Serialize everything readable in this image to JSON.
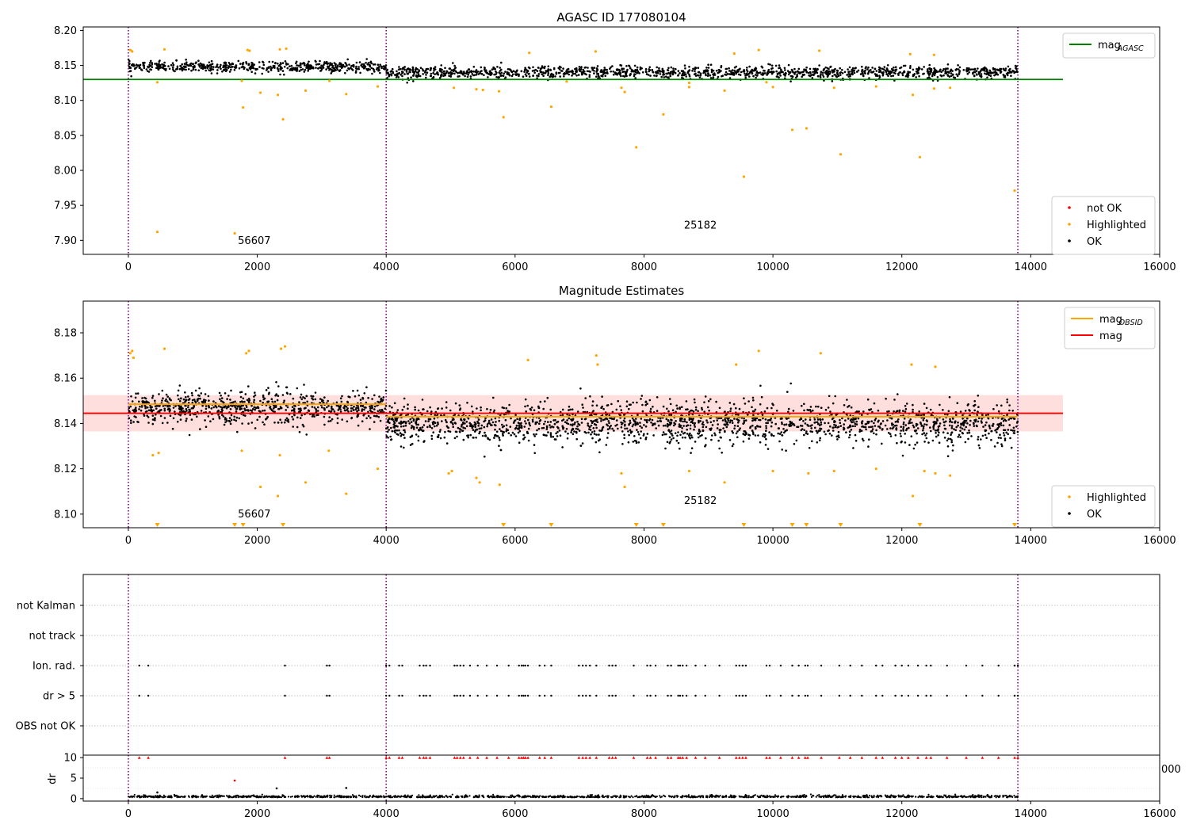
{
  "chart_data": [
    {
      "type": "scatter",
      "title": "AGASC ID 177080104",
      "xlim": [
        -700,
        16000
      ],
      "ylim": [
        7.88,
        8.205
      ],
      "x_ticks": [
        0,
        2000,
        4000,
        6000,
        8000,
        10000,
        12000,
        14000,
        16000
      ],
      "y_ticks": [
        7.9,
        7.95,
        8.0,
        8.05,
        8.1,
        8.15,
        8.2
      ],
      "vlines": [
        0,
        4000,
        13800
      ],
      "hline": {
        "name": "mag",
        "subscript": "AGASC",
        "value": 8.13,
        "x_range": [
          -700,
          14500
        ],
        "color": "#008000"
      },
      "annotations": [
        {
          "text": "56607",
          "x": 1700,
          "y": 7.895
        },
        {
          "text": "25182",
          "x": 8620,
          "y": 7.917
        }
      ],
      "legend_top": [
        {
          "label": "mag",
          "sub": "AGASC",
          "kind": "line",
          "color": "#008000"
        }
      ],
      "legend_bottom": [
        {
          "label": "not OK",
          "kind": "dot",
          "color": "#ff0000"
        },
        {
          "label": "Highlighted",
          "kind": "dot",
          "color": "#ffa500"
        },
        {
          "label": "OK",
          "kind": "dot",
          "color": "#000000"
        }
      ],
      "ok_series": {
        "segments": [
          {
            "x": [
              0,
              4000
            ],
            "center": 8.148,
            "spread": 0.007
          },
          {
            "x": [
              4000,
              13800
            ],
            "center": 8.14,
            "spread": 0.008
          }
        ],
        "point_count": 1900,
        "color": "#000000"
      },
      "highlighted_points": [
        [
          450,
          7.912
        ],
        [
          1650,
          7.91
        ],
        [
          1780,
          8.09
        ],
        [
          2050,
          8.111
        ],
        [
          2320,
          8.108
        ],
        [
          2400,
          8.073
        ],
        [
          2750,
          8.114
        ],
        [
          3380,
          8.109
        ],
        [
          3870,
          8.12
        ],
        [
          5820,
          8.076
        ],
        [
          6560,
          8.091
        ],
        [
          7880,
          8.033
        ],
        [
          8300,
          8.08
        ],
        [
          9550,
          7.991
        ],
        [
          10300,
          8.058
        ],
        [
          10520,
          8.06
        ],
        [
          11050,
          8.023
        ],
        [
          12280,
          8.019
        ],
        [
          13750,
          7.971
        ],
        [
          12170,
          8.108
        ],
        [
          5050,
          8.118
        ],
        [
          5400,
          8.116
        ],
        [
          5500,
          8.115
        ],
        [
          5750,
          8.113
        ],
        [
          7650,
          8.118
        ],
        [
          7700,
          8.112
        ],
        [
          8700,
          8.119
        ],
        [
          9250,
          8.114
        ],
        [
          10000,
          8.119
        ],
        [
          10950,
          8.118
        ],
        [
          11600,
          8.12
        ],
        [
          12500,
          8.117
        ],
        [
          12750,
          8.118
        ],
        [
          30,
          8.172
        ],
        [
          60,
          8.17
        ],
        [
          560,
          8.173
        ],
        [
          1850,
          8.172
        ],
        [
          1880,
          8.171
        ],
        [
          2350,
          8.173
        ],
        [
          2450,
          8.174
        ],
        [
          6220,
          8.168
        ],
        [
          7250,
          8.17
        ],
        [
          9400,
          8.167
        ],
        [
          9780,
          8.172
        ],
        [
          10720,
          8.171
        ],
        [
          12130,
          8.166
        ],
        [
          12500,
          8.165
        ],
        [
          3120,
          8.128
        ],
        [
          1760,
          8.128
        ],
        [
          450,
          8.126
        ],
        [
          6800,
          8.127
        ],
        [
          8700,
          8.125
        ],
        [
          9900,
          8.126
        ]
      ],
      "highlighted_color": "#ffa500"
    },
    {
      "type": "scatter",
      "title": "Magnitude Estimates",
      "xlim": [
        -700,
        16000
      ],
      "ylim": [
        8.094,
        8.194
      ],
      "x_ticks": [
        0,
        2000,
        4000,
        6000,
        8000,
        10000,
        12000,
        14000,
        16000
      ],
      "y_ticks": [
        8.1,
        8.12,
        8.14,
        8.16,
        8.18
      ],
      "vlines": [
        0,
        4000,
        13800
      ],
      "mag_line": {
        "name": "mag",
        "value": 8.1445,
        "x_range": [
          -700,
          14500
        ],
        "color": "#ff0000"
      },
      "mag_band": {
        "low": 8.1365,
        "high": 8.1525,
        "color": "#ff0000"
      },
      "obsid_segments": [
        {
          "x": [
            0,
            4000
          ],
          "value": 8.1485
        },
        {
          "x": [
            4000,
            13800
          ],
          "value": 8.143
        }
      ],
      "obsid_color": "#ffa500",
      "annotations": [
        {
          "text": "56607",
          "x": 1700,
          "y": 8.0985
        },
        {
          "text": "25182",
          "x": 8620,
          "y": 8.1045
        }
      ],
      "legend_top": [
        {
          "label": "mag",
          "sub": "OBSID",
          "kind": "line",
          "color": "#ffa500"
        },
        {
          "label": "mag",
          "kind": "line",
          "color": "#ff0000"
        }
      ],
      "legend_bottom": [
        {
          "label": "Highlighted",
          "kind": "dot",
          "color": "#ffa500"
        },
        {
          "label": "OK",
          "kind": "dot",
          "color": "#000000"
        }
      ],
      "ok_series": {
        "segments": [
          {
            "x": [
              0,
              4000
            ],
            "center": 8.147,
            "spread": 0.0065
          },
          {
            "x": [
              4000,
              13800
            ],
            "center": 8.14,
            "spread": 0.0085
          }
        ],
        "point_count": 2600,
        "color": "#000000"
      },
      "highlighted_points": [
        [
          30,
          8.171
        ],
        [
          60,
          8.172
        ],
        [
          80,
          8.169
        ],
        [
          560,
          8.173
        ],
        [
          1830,
          8.171
        ],
        [
          1870,
          8.172
        ],
        [
          2370,
          8.173
        ],
        [
          2430,
          8.174
        ],
        [
          6200,
          8.168
        ],
        [
          7260,
          8.17
        ],
        [
          7280,
          8.166
        ],
        [
          9430,
          8.166
        ],
        [
          9780,
          8.172
        ],
        [
          10740,
          8.171
        ],
        [
          12150,
          8.166
        ],
        [
          12520,
          8.165
        ],
        [
          380,
          8.126
        ],
        [
          470,
          8.127
        ],
        [
          1760,
          8.128
        ],
        [
          2350,
          8.126
        ],
        [
          3110,
          8.128
        ],
        [
          2050,
          8.112
        ],
        [
          2320,
          8.108
        ],
        [
          2750,
          8.114
        ],
        [
          3380,
          8.109
        ],
        [
          3870,
          8.12
        ],
        [
          4970,
          8.118
        ],
        [
          5020,
          8.119
        ],
        [
          5400,
          8.116
        ],
        [
          5450,
          8.114
        ],
        [
          5760,
          8.113
        ],
        [
          7650,
          8.118
        ],
        [
          7700,
          8.112
        ],
        [
          8700,
          8.119
        ],
        [
          9250,
          8.114
        ],
        [
          10000,
          8.119
        ],
        [
          10550,
          8.118
        ],
        [
          10950,
          8.119
        ],
        [
          11600,
          8.12
        ],
        [
          12170,
          8.108
        ],
        [
          12350,
          8.119
        ],
        [
          12520,
          8.118
        ],
        [
          12750,
          8.117
        ]
      ],
      "offscale_markers_x": [
        450,
        1650,
        1780,
        2400,
        5820,
        6560,
        7880,
        8300,
        9550,
        10300,
        10520,
        11050,
        12280,
        13750
      ],
      "highlighted_color": "#ffa500"
    },
    {
      "type": "scatter",
      "xlim": [
        -700,
        16000
      ],
      "x_ticks": [
        0,
        2000,
        4000,
        6000,
        8000,
        10000,
        12000,
        14000,
        16000
      ],
      "vlines": [
        0,
        4000,
        13800
      ],
      "flag_rows": [
        "not Kalman",
        "not track",
        "Ion. rad.",
        "dr > 5",
        "OBS not OK"
      ],
      "flag_points_x": [
        170,
        310,
        2430,
        3080,
        3120,
        4000,
        4050,
        4200,
        4250,
        4520,
        4580,
        4620,
        4680,
        5060,
        5100,
        5150,
        5200,
        5300,
        5420,
        5560,
        5720,
        5900,
        6060,
        6100,
        6130,
        6160,
        6200,
        6380,
        6460,
        6560,
        6990,
        7050,
        7100,
        7160,
        7260,
        7460,
        7510,
        7560,
        7840,
        8050,
        8100,
        8180,
        8370,
        8420,
        8530,
        8560,
        8600,
        8660,
        8800,
        8950,
        9170,
        9430,
        9480,
        9530,
        9580,
        9900,
        9950,
        10120,
        10300,
        10400,
        10500,
        10540,
        10750,
        11030,
        11200,
        11380,
        11600,
        11700,
        11900,
        12000,
        12100,
        12250,
        12380,
        12450,
        12700,
        13000,
        13250,
        13500,
        13750,
        13800
      ],
      "dr_panel": {
        "ylabel": "dr",
        "y_ticks": [
          0,
          5,
          10
        ],
        "ylim": [
          -0.6,
          10.6
        ],
        "clip_value": 10,
        "clip_color": "#ff0000",
        "baseline": 0.3,
        "baseline_spread": 0.25,
        "extra_points": [
          [
            1650,
            4.4
          ],
          [
            2300,
            2.5
          ],
          [
            3380,
            2.6
          ],
          [
            450,
            1.5
          ]
        ],
        "extra_color": "#ff0000",
        "stray_label": "000"
      }
    }
  ]
}
